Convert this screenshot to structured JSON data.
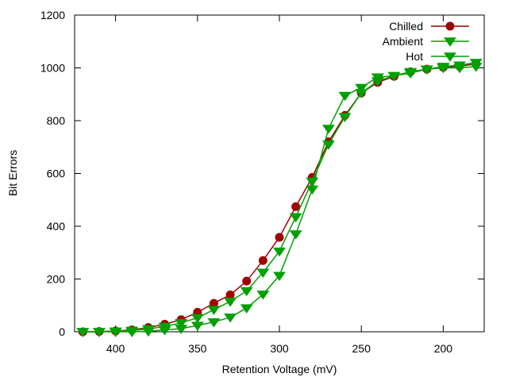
{
  "chart_data": {
    "type": "line",
    "title": "",
    "xlabel": "Retention Voltage (mV)",
    "ylabel": "Bit Errors",
    "xlim": [
      425,
      175
    ],
    "ylim": [
      0,
      1200
    ],
    "x_reversed": true,
    "xticks": [
      400,
      350,
      300,
      250,
      200
    ],
    "yticks": [
      0,
      200,
      400,
      600,
      800,
      1000,
      1200
    ],
    "grid": false,
    "legend_position": "top-right",
    "x": [
      420,
      410,
      400,
      390,
      380,
      370,
      360,
      350,
      340,
      330,
      320,
      310,
      300,
      290,
      280,
      270,
      260,
      250,
      240,
      230,
      220,
      210,
      200,
      190,
      180
    ],
    "series": [
      {
        "name": "Chilled",
        "color": "#a00000",
        "marker": "circle",
        "values": [
          0,
          1,
          3,
          7,
          16,
          29,
          46,
          74,
          108,
          140,
          192,
          270,
          358,
          474,
          585,
          720,
          820,
          905,
          945,
          968,
          985,
          995,
          1002,
          1006,
          1015
        ]
      },
      {
        "name": "Ambient",
        "color": "#00a000",
        "marker": "triangle-down",
        "values": [
          0,
          0,
          2,
          5,
          11,
          20,
          34,
          53,
          84,
          115,
          155,
          225,
          305,
          435,
          570,
          710,
          815,
          905,
          950,
          970,
          985,
          995,
          1005,
          1010,
          1020
        ]
      },
      {
        "name": "Hot",
        "color": "#00a000",
        "marker": "triangle-down",
        "values": [
          0,
          0,
          0,
          0,
          2,
          7,
          12,
          24,
          37,
          55,
          90,
          142,
          213,
          370,
          540,
          770,
          895,
          925,
          965,
          970,
          980,
          995,
          1000,
          1000,
          1005
        ]
      }
    ]
  }
}
